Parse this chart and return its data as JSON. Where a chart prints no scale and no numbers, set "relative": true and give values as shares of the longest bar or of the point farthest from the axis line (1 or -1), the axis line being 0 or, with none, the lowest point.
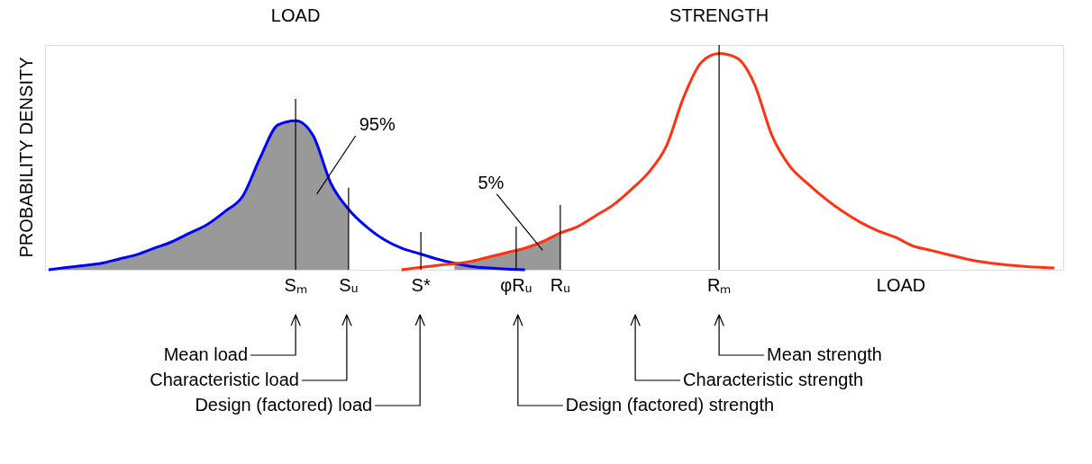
{
  "chart_data": {
    "type": "line",
    "relative": true,
    "xlabel": "LOAD",
    "ylabel": "PROBABILITY DENSITY",
    "categories": [
      null,
      null,
      null,
      null,
      null,
      null,
      null,
      null,
      null,
      null,
      null,
      null,
      null,
      null,
      null,
      null,
      null,
      null,
      null,
      null,
      null,
      null,
      null,
      null,
      null,
      null,
      null,
      null,
      null,
      null,
      null,
      null,
      null,
      null,
      null,
      null,
      null,
      null,
      null,
      null,
      null,
      null,
      null,
      null,
      null,
      null,
      null,
      null,
      null,
      null,
      null,
      null,
      null,
      null,
      null,
      null,
      null,
      null
    ],
    "series": [
      {
        "type": "area",
        "color": "#999999",
        "values": [
          0,
          0.01,
          0.02,
          0.03,
          0.05,
          0.07,
          0.1,
          0.13,
          0.17,
          0.21,
          0.27,
          0.34,
          0.52,
          0.67,
          0.69,
          0.62,
          0.4,
          0.28,
          null,
          null,
          null,
          null,
          null,
          null,
          null,
          null,
          null,
          null,
          null,
          null,
          null,
          null,
          null,
          null,
          null,
          null,
          null,
          null,
          null,
          null,
          null,
          null,
          null,
          null,
          null,
          null,
          null,
          null,
          null,
          null,
          null,
          null,
          null,
          null,
          null,
          null,
          null,
          null
        ]
      },
      {
        "type": "area",
        "color": "#999999",
        "values": [
          null,
          null,
          null,
          null,
          null,
          null,
          null,
          null,
          null,
          null,
          null,
          null,
          null,
          null,
          null,
          null,
          null,
          null,
          null,
          null,
          null,
          null,
          null,
          0.028,
          0.04,
          0.06,
          0.08,
          0.1,
          0.13,
          0.17,
          null,
          null,
          null,
          null,
          null,
          null,
          null,
          null,
          null,
          null,
          null,
          null,
          null,
          null,
          null,
          null,
          null,
          null,
          null,
          null,
          null,
          null,
          null,
          null,
          null,
          null,
          null,
          null
        ]
      },
      {
        "color": "#0000ff",
        "values": [
          0,
          0.01,
          0.02,
          0.03,
          0.05,
          0.07,
          0.1,
          0.13,
          0.17,
          0.21,
          0.27,
          0.34,
          0.52,
          0.67,
          0.69,
          0.62,
          0.4,
          0.28,
          0.2,
          0.14,
          0.1,
          0.075,
          0.05,
          0.03,
          0.015,
          0.008,
          0.003,
          0,
          null,
          null,
          null,
          null,
          null,
          null,
          null,
          null,
          null,
          null,
          null,
          null,
          null,
          null,
          null,
          null,
          null,
          null,
          null,
          null,
          null,
          null,
          null,
          null,
          null,
          null,
          null,
          null,
          null,
          null
        ]
      },
      {
        "color": "#ff3311",
        "values": [
          null,
          null,
          null,
          null,
          null,
          null,
          null,
          null,
          null,
          null,
          null,
          null,
          null,
          null,
          null,
          null,
          null,
          null,
          null,
          null,
          0,
          0.01,
          0.02,
          0.028,
          0.04,
          0.06,
          0.08,
          0.1,
          0.13,
          0.17,
          0.2,
          0.25,
          0.3,
          0.37,
          0.45,
          0.57,
          0.8,
          0.96,
          1.0,
          0.98,
          0.86,
          0.62,
          0.48,
          0.4,
          0.33,
          0.27,
          0.22,
          0.18,
          0.15,
          0.11,
          0.09,
          0.07,
          0.05,
          0.035,
          0.025,
          0.018,
          0.012,
          0.008
        ]
      }
    ],
    "annotations": [
      "LOAD",
      "STRENGTH",
      "95%",
      "5%",
      "Sₘ",
      "Sᵤ",
      "S*",
      "φRᵤ",
      "Rᵤ",
      "Rₘ",
      "Mean load",
      "Characteristic load",
      "Design (factored) load",
      "Design (factored) strength",
      "Characteristic strength",
      "Mean strength"
    ],
    "grid": false
  }
}
